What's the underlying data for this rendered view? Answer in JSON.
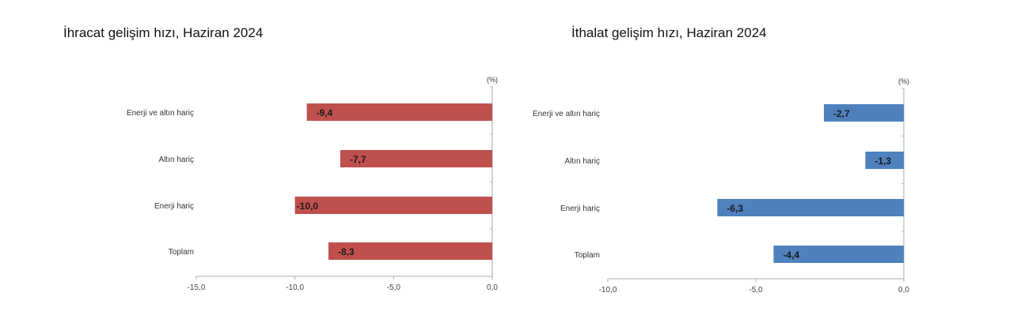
{
  "chart_data": [
    {
      "type": "bar",
      "orientation": "horizontal",
      "title": "İhracat gelişim hızı, Haziran 2024",
      "unit_label": "(%)",
      "categories": [
        "Enerji ve altın hariç",
        "Altın hariç",
        "Enerji hariç",
        "Toplam"
      ],
      "values": [
        -9.4,
        -7.7,
        -10.0,
        -8.3
      ],
      "data_labels": [
        "-9,4",
        "-7,7",
        "-10,0",
        "-8,3"
      ],
      "xlim": [
        -15,
        0
      ],
      "ticks": [
        -15,
        -10,
        -5,
        0
      ],
      "tick_labels": [
        "-15,0",
        "-10,0",
        "-5,0",
        "0,0"
      ],
      "color": "#c0504d",
      "grid": false,
      "legend": "none"
    },
    {
      "type": "bar",
      "orientation": "horizontal",
      "title": "İthalat gelişim hızı, Haziran 2024",
      "unit_label": "(%)",
      "categories": [
        "Enerji ve altın hariç",
        "Altın hariç",
        "Enerji hariç",
        "Toplam"
      ],
      "values": [
        -2.7,
        -1.3,
        -6.3,
        -4.4
      ],
      "data_labels": [
        "-2,7",
        "-1,3",
        "-6,3",
        "-4,4"
      ],
      "xlim": [
        -10,
        0
      ],
      "ticks": [
        -10,
        -5,
        0
      ],
      "tick_labels": [
        "-10,0",
        "-5,0",
        "0,0"
      ],
      "color": "#4f81bd",
      "grid": false,
      "legend": "none"
    }
  ]
}
